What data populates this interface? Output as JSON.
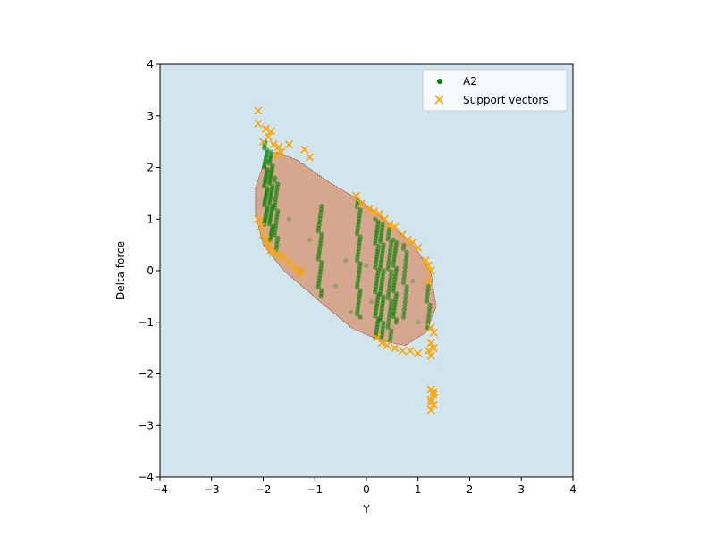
{
  "chart_data": {
    "type": "scatter",
    "title": "",
    "xlabel": "Y",
    "ylabel": "Delta force",
    "xlim": [
      -4,
      4
    ],
    "ylim": [
      -4,
      4
    ],
    "xticks": [
      "−4",
      "−3",
      "−2",
      "−1",
      "0",
      "1",
      "2",
      "3",
      "4"
    ],
    "yticks": [
      "−4",
      "−3",
      "−2",
      "−1",
      "0",
      "1",
      "2",
      "3",
      "4"
    ],
    "grid": false,
    "legend_placement": "top-right",
    "colors": {
      "background": "#d1e5ef",
      "region_fill": "#d5a78e",
      "region_edge": "#8b4a2a",
      "series_a2": "#008000",
      "support_vectors": "#ffa500"
    },
    "decision_region": {
      "label": "",
      "boundary": [
        [
          -1.75,
          2.3
        ],
        [
          -1.35,
          2.15
        ],
        [
          -0.7,
          1.7
        ],
        [
          -0.1,
          1.35
        ],
        [
          0.5,
          0.85
        ],
        [
          0.95,
          0.45
        ],
        [
          1.25,
          -0.05
        ],
        [
          1.35,
          -0.7
        ],
        [
          1.15,
          -1.2
        ],
        [
          0.75,
          -1.45
        ],
        [
          0.25,
          -1.35
        ],
        [
          -0.3,
          -1.1
        ],
        [
          -0.9,
          -0.6
        ],
        [
          -1.6,
          0.0
        ],
        [
          -2.0,
          0.5
        ],
        [
          -2.15,
          1.1
        ],
        [
          -2.15,
          1.6
        ],
        [
          -2.0,
          2.05
        ]
      ]
    },
    "series": [
      {
        "name": "A2",
        "marker": "dot",
        "columns": [
          {
            "x": -1.95,
            "y0": 0.9,
            "y1": 2.5,
            "n": 40
          },
          {
            "x": -1.85,
            "y0": 0.6,
            "y1": 2.3,
            "n": 40
          },
          {
            "x": -1.75,
            "y0": 0.4,
            "y1": 1.8,
            "n": 25
          },
          {
            "x": -0.9,
            "y0": -0.5,
            "y1": 1.25,
            "n": 30
          },
          {
            "x": -0.15,
            "y0": -0.9,
            "y1": 1.35,
            "n": 40
          },
          {
            "x": 0.2,
            "y0": -1.3,
            "y1": 1.0,
            "n": 45
          },
          {
            "x": 0.3,
            "y0": -1.3,
            "y1": 0.9,
            "n": 40
          },
          {
            "x": 0.45,
            "y0": -1.35,
            "y1": 0.8,
            "n": 35
          },
          {
            "x": 0.55,
            "y0": -1.0,
            "y1": 0.6,
            "n": 30
          },
          {
            "x": 0.75,
            "y0": -0.9,
            "y1": 0.5,
            "n": 20
          },
          {
            "x": 1.2,
            "y0": -1.1,
            "y1": -0.3,
            "n": 12
          }
        ],
        "points": [
          [
            -0.6,
            -0.3
          ],
          [
            -0.4,
            0.2
          ],
          [
            -1.3,
            0.0
          ],
          [
            0.1,
            -0.6
          ],
          [
            -1.1,
            0.6
          ],
          [
            0.0,
            0.1
          ],
          [
            0.9,
            -0.2
          ],
          [
            -1.5,
            1.0
          ],
          [
            -0.3,
            -0.8
          ],
          [
            1.0,
            -1.0
          ]
        ]
      },
      {
        "name": "Support vectors",
        "marker": "x",
        "points": [
          [
            -2.1,
            3.1
          ],
          [
            -2.1,
            2.85
          ],
          [
            -2.0,
            2.5
          ],
          [
            -1.95,
            2.75
          ],
          [
            -1.9,
            2.6
          ],
          [
            -1.85,
            2.7
          ],
          [
            -1.8,
            2.45
          ],
          [
            -1.75,
            2.25
          ],
          [
            -1.7,
            2.4
          ],
          [
            -1.65,
            2.3
          ],
          [
            -1.5,
            2.45
          ],
          [
            -1.2,
            2.35
          ],
          [
            -1.1,
            2.2
          ],
          [
            -0.2,
            1.45
          ],
          [
            -0.1,
            1.3
          ],
          [
            0.05,
            1.2
          ],
          [
            0.15,
            1.15
          ],
          [
            0.25,
            1.1
          ],
          [
            0.35,
            1.0
          ],
          [
            0.45,
            0.9
          ],
          [
            0.55,
            0.85
          ],
          [
            0.7,
            0.7
          ],
          [
            0.8,
            0.6
          ],
          [
            0.9,
            0.55
          ],
          [
            1.0,
            0.45
          ],
          [
            1.15,
            0.2
          ],
          [
            1.2,
            0.1
          ],
          [
            1.25,
            0.0
          ],
          [
            1.2,
            -0.2
          ],
          [
            1.25,
            -1.1
          ],
          [
            1.3,
            -1.2
          ],
          [
            1.25,
            -1.4
          ],
          [
            1.3,
            -1.5
          ],
          [
            1.25,
            -1.65
          ],
          [
            1.2,
            -1.55
          ],
          [
            1.0,
            -1.6
          ],
          [
            0.85,
            -1.55
          ],
          [
            0.7,
            -1.55
          ],
          [
            0.55,
            -1.5
          ],
          [
            0.4,
            -1.45
          ],
          [
            0.3,
            -1.4
          ],
          [
            0.2,
            -1.3
          ],
          [
            -2.1,
            1.0
          ],
          [
            -2.05,
            0.85
          ],
          [
            -2.0,
            0.7
          ],
          [
            -1.95,
            0.6
          ],
          [
            -1.9,
            0.5
          ],
          [
            -1.85,
            0.4
          ],
          [
            -1.8,
            0.35
          ],
          [
            -1.7,
            0.3
          ],
          [
            -1.6,
            0.25
          ],
          [
            -1.5,
            0.15
          ],
          [
            -1.4,
            0.05
          ],
          [
            -1.3,
            0.0
          ],
          [
            -1.25,
            -0.05
          ],
          [
            1.25,
            -2.3
          ],
          [
            1.3,
            -2.4
          ],
          [
            1.25,
            -2.5
          ],
          [
            1.3,
            -2.6
          ],
          [
            1.25,
            -2.7
          ],
          [
            1.3,
            -2.35
          ],
          [
            1.25,
            -2.55
          ]
        ]
      }
    ],
    "legend": [
      "A2",
      "Support vectors"
    ]
  }
}
